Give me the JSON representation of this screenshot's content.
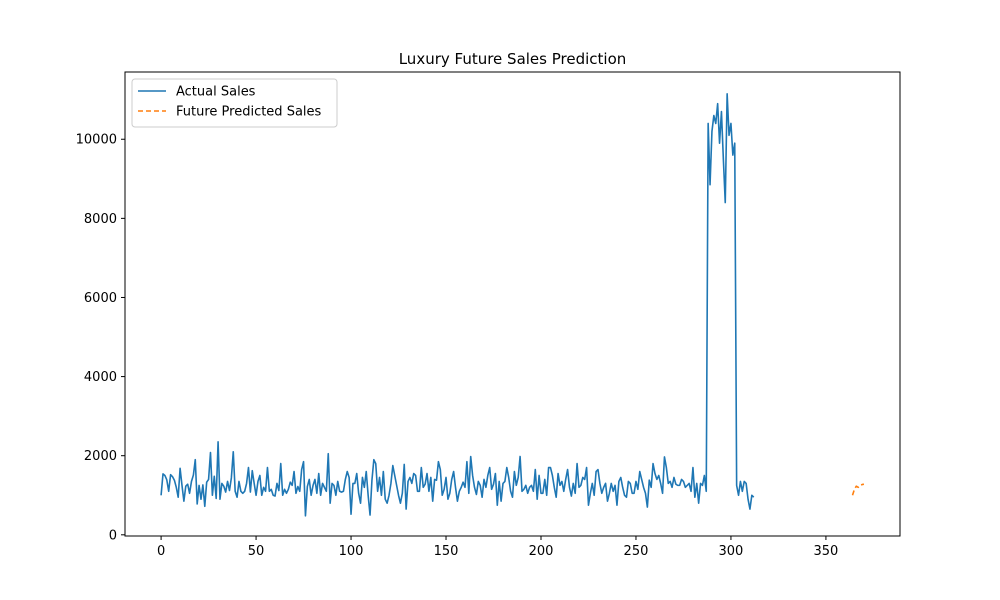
{
  "chart_data": {
    "type": "line",
    "title": "Luxury Future Sales Prediction",
    "xlabel": "",
    "ylabel": "",
    "xlim": [
      -19,
      389
    ],
    "ylim": [
      -30,
      11700
    ],
    "xticks": [
      0,
      50,
      100,
      150,
      200,
      250,
      300,
      350
    ],
    "yticks": [
      0,
      2000,
      4000,
      6000,
      8000,
      10000
    ],
    "grid": false,
    "legend_position": "top-left",
    "series": [
      {
        "name": "Actual Sales",
        "color": "#1f77b4",
        "style": "solid",
        "x_start": 0,
        "values": [
          1000,
          1540,
          1500,
          1390,
          1100,
          1520,
          1470,
          1380,
          1200,
          950,
          1680,
          1250,
          850,
          1230,
          1280,
          1050,
          1350,
          1510,
          1900,
          780,
          1250,
          900,
          1260,
          720,
          1330,
          1400,
          2080,
          1000,
          1480,
          920,
          2350,
          900,
          1300,
          1230,
          1080,
          1350,
          1120,
          1440,
          2100,
          1100,
          950,
          1350,
          1100,
          1050,
          1100,
          1300,
          1700,
          1080,
          1620,
          1300,
          1000,
          1350,
          1500,
          1000,
          1200,
          1100,
          1700,
          1100,
          1150,
          1000,
          980,
          1300,
          1120,
          1800,
          1000,
          1150,
          1050,
          1150,
          1330,
          1250,
          1600,
          1050,
          1220,
          1100,
          1650,
          1850,
          480,
          1220,
          1400,
          1000,
          1250,
          1400,
          1050,
          1550,
          1000,
          1300,
          1200,
          1100,
          2050,
          800,
          1300,
          1250,
          1000,
          1350,
          1100,
          1080,
          1100,
          1400,
          1600,
          1450,
          520,
          1300,
          1300,
          1550,
          1050,
          800,
          1450,
          1200,
          1600,
          1000,
          500,
          1380,
          1900,
          1800,
          1100,
          1450,
          1000,
          1600,
          900,
          800,
          1000,
          1300,
          1750,
          1500,
          1250,
          1000,
          800,
          1050,
          1780,
          650,
          1350,
          1450,
          1300,
          1550,
          1500,
          1100,
          1100,
          1700,
          1200,
          1280,
          1550,
          1100,
          1450,
          850,
          1400,
          1380,
          1850,
          1650,
          1000,
          1150,
          1450,
          900,
          1050,
          1400,
          1600,
          1200,
          850,
          1100,
          1200,
          1330,
          1200,
          1850,
          1050,
          1980,
          1500,
          1200,
          1020,
          1350,
          1250,
          950,
          1400,
          1200,
          1500,
          1700,
          1150,
          1280,
          1550,
          750,
          1350,
          850,
          1300,
          1350,
          1700,
          1450,
          1100,
          950,
          1600,
          1250,
          1450,
          1980,
          1100,
          1150,
          1250,
          1050,
          1200,
          1250,
          1100,
          1650,
          900,
          1500,
          1050,
          1050,
          1400,
          1000,
          1700,
          1700,
          1500,
          1200,
          950,
          1550,
          1250,
          1350,
          1100,
          1400,
          1650,
          1200,
          980,
          1300,
          1050,
          1800,
          1200,
          1250,
          1450,
          1400,
          1700,
          750,
          1050,
          1300,
          1000,
          1600,
          1650,
          1300,
          1050,
          1200,
          1300,
          850,
          1050,
          1300,
          1100,
          1250,
          750,
          1350,
          1450,
          1200,
          1000,
          950,
          1350,
          1300,
          1050,
          1050,
          1350,
          1150,
          1600,
          1400,
          1200,
          1050,
          700,
          1380,
          1200,
          1800,
          1550,
          1400,
          1500,
          1300,
          1050,
          1970,
          1700,
          1300,
          1350,
          1200,
          1450,
          1280,
          1250,
          1250,
          1400,
          1350,
          1200,
          1250,
          1300,
          1100,
          1700,
          950,
          1300,
          800,
          1300,
          1250,
          1500,
          1100,
          10400,
          8850,
          10200,
          10600,
          10400,
          10900,
          9900,
          10700,
          9500,
          8400,
          11150,
          10100,
          10400,
          9600,
          9900,
          1250,
          1000,
          1350,
          1100,
          1350,
          1300,
          900,
          650,
          1000,
          950
        ]
      },
      {
        "name": "Future Predicted Sales",
        "color": "#ff7f0e",
        "style": "dashed",
        "x": [
          364,
          365,
          366,
          367,
          368,
          369,
          370
        ],
        "values": [
          1000,
          1150,
          1230,
          1200,
          1250,
          1270,
          1280
        ]
      }
    ]
  }
}
